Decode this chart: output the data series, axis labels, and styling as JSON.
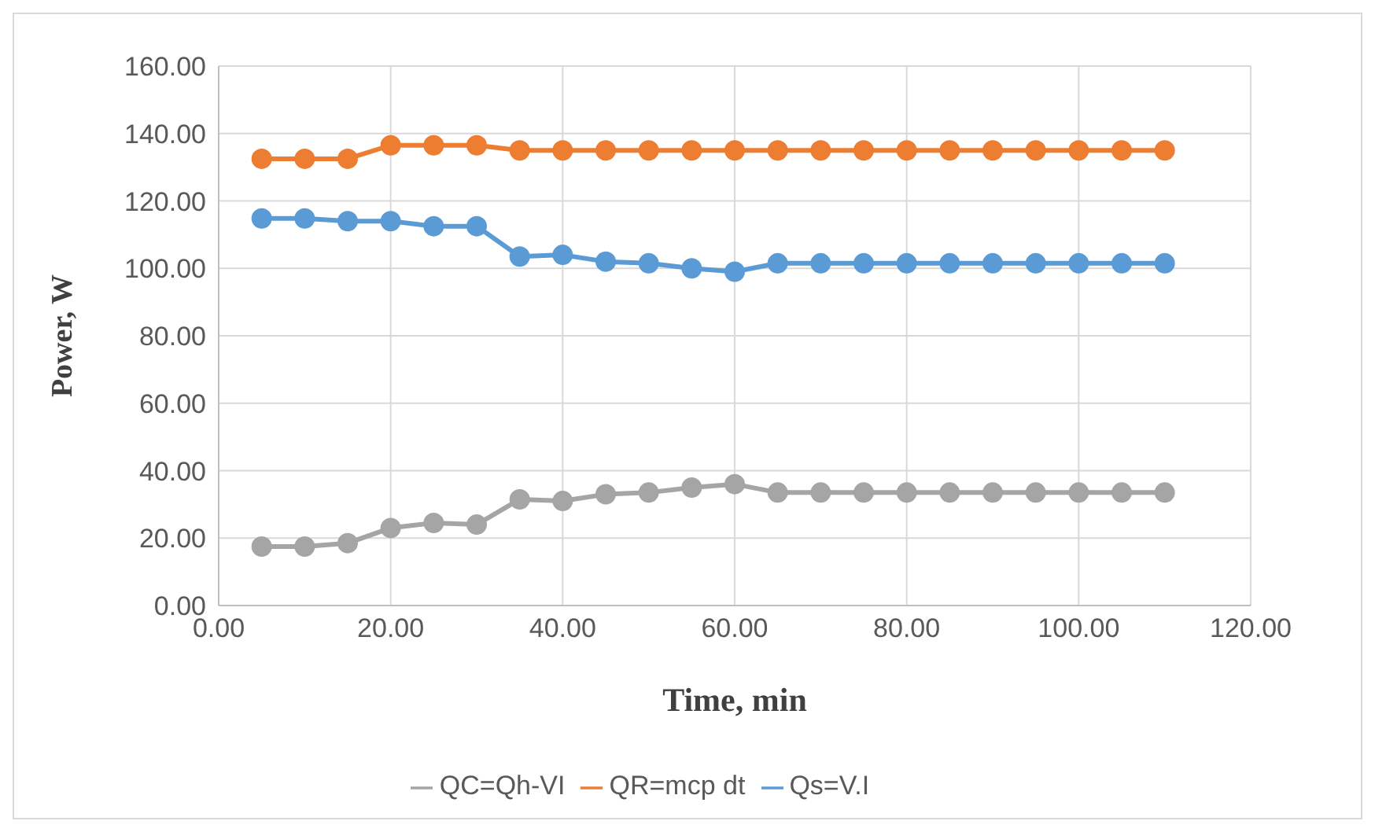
{
  "chart_data": {
    "type": "line",
    "xlabel": "Time, min",
    "ylabel": "Power, W",
    "x": [
      5,
      10,
      15,
      20,
      25,
      30,
      35,
      40,
      45,
      50,
      55,
      60,
      65,
      70,
      75,
      80,
      85,
      90,
      95,
      100,
      105,
      110
    ],
    "series": [
      {
        "name": "Qs=V.I",
        "color": "#5b9bd5",
        "values": [
          114.8,
          114.8,
          114,
          114,
          112.5,
          112.5,
          103.5,
          104,
          102,
          101.5,
          100,
          99,
          101.5,
          101.5,
          101.5,
          101.5,
          101.5,
          101.5,
          101.5,
          101.5,
          101.5,
          101.5
        ]
      },
      {
        "name": "QR=mcp dt",
        "color": "#ed7d31",
        "values": [
          132.5,
          132.5,
          132.5,
          136.5,
          136.5,
          136.5,
          135,
          135,
          135,
          135,
          135,
          135,
          135,
          135,
          135,
          135,
          135,
          135,
          135,
          135,
          135,
          135
        ]
      },
      {
        "name": "QC=Qh-VI",
        "color": "#a5a5a5",
        "values": [
          17.5,
          17.5,
          18.5,
          23,
          24.5,
          24,
          31.5,
          31,
          33,
          33.5,
          35,
          36,
          33.5,
          33.5,
          33.5,
          33.5,
          33.5,
          33.5,
          33.5,
          33.5,
          33.5,
          33.5
        ]
      }
    ],
    "xlim": [
      0,
      120
    ],
    "xticks": [
      {
        "value": 0,
        "label": "0.00"
      },
      {
        "value": 20,
        "label": "20.00"
      },
      {
        "value": 40,
        "label": "40.00"
      },
      {
        "value": 60,
        "label": "60.00"
      },
      {
        "value": 80,
        "label": "80.00"
      },
      {
        "value": 100,
        "label": "100.00"
      },
      {
        "value": 120,
        "label": "120.00"
      }
    ],
    "ylim": [
      0,
      160
    ],
    "yticks": [
      {
        "value": 0,
        "label": "0.00"
      },
      {
        "value": 20,
        "label": "20.00"
      },
      {
        "value": 40,
        "label": "40.00"
      },
      {
        "value": 60,
        "label": "60.00"
      },
      {
        "value": 80,
        "label": "80.00"
      },
      {
        "value": 100,
        "label": "100.00"
      },
      {
        "value": 120,
        "label": "120.00"
      },
      {
        "value": 140,
        "label": "140.00"
      },
      {
        "value": 160,
        "label": "160.00"
      }
    ],
    "grid": true,
    "legend": "bottom",
    "marker": "circle",
    "line_style": "solid"
  }
}
